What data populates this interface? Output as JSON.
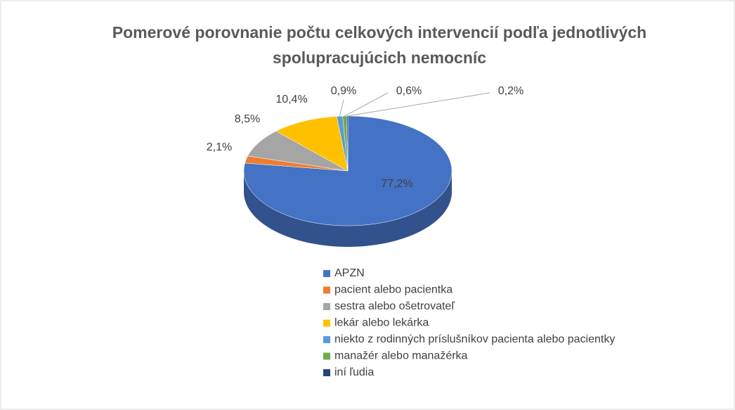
{
  "chart_data": {
    "type": "pie",
    "title": "Pomerové porovnanie počtu celkových intervencií podľa jednotlivých spolupracujúcich nemocníc",
    "categories": [
      "APZN",
      "pacient alebo pacientka",
      "sestra alebo ošetrovateľ",
      "lekár alebo lekárka",
      "niekto z rodinných príslušníkov pacienta alebo pacientky",
      "manažér alebo manažérka",
      "iní ľudia"
    ],
    "values": [
      77.2,
      2.1,
      8.5,
      10.4,
      0.9,
      0.6,
      0.2
    ],
    "value_labels": [
      "77,2%",
      "2,1%",
      "8,5%",
      "10,4%",
      "0,9%",
      "0,6%",
      "0,2%"
    ],
    "colors": [
      "#4472c4",
      "#ed7d31",
      "#a5a5a5",
      "#ffc000",
      "#5b9bd5",
      "#70ad47",
      "#264478"
    ],
    "legend": "bottom"
  }
}
